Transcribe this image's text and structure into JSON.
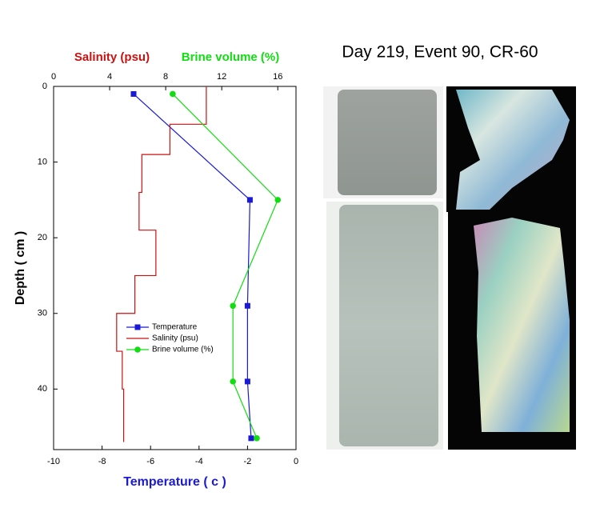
{
  "chart_data": {
    "type": "line",
    "x_label": "Temperature ( c )",
    "y_label": "Depth ( cm )",
    "x2_labels": [
      "Salinity (psu)",
      "Brine volume (%)"
    ],
    "xlim": [
      -10,
      0
    ],
    "xticks": [
      -10,
      -8,
      -6,
      -4,
      -2,
      0
    ],
    "x2lim": [
      0,
      17.3
    ],
    "x2ticks": [
      0,
      4,
      8,
      12,
      16
    ],
    "ylim": [
      0,
      48
    ],
    "yticks": [
      0,
      10,
      20,
      30,
      40
    ],
    "y_inverted": true,
    "series": [
      {
        "name": "Temperature",
        "color": "#1a1ad6",
        "marker": "square",
        "y": [
          1,
          15,
          29,
          39,
          46.5
        ],
        "values": [
          -6.7,
          -1.9,
          -2.0,
          -2.0,
          -1.85
        ]
      },
      {
        "name": "Salinity (psu)",
        "color": "#cc1111",
        "marker": "none",
        "axis": "x2",
        "y": [
          0,
          5,
          5,
          9,
          9,
          14,
          14,
          19,
          19,
          25,
          25,
          30,
          30,
          35,
          35,
          40,
          40,
          47
        ],
        "values": [
          10.9,
          10.9,
          8.3,
          8.3,
          6.3,
          6.3,
          6.1,
          6.1,
          7.3,
          7.3,
          5.8,
          5.8,
          4.5,
          4.5,
          4.9,
          4.9,
          5.0,
          5.0
        ]
      },
      {
        "name": "Brine volume (%)",
        "color": "#11dd11",
        "marker": "circle",
        "axis": "x2",
        "y": [
          1,
          15,
          29,
          39,
          46.5
        ],
        "values": [
          8.5,
          16.0,
          12.8,
          12.8,
          14.5
        ]
      }
    ]
  },
  "photo_panel": {
    "title": "Day 219, Event 90, CR-60"
  }
}
